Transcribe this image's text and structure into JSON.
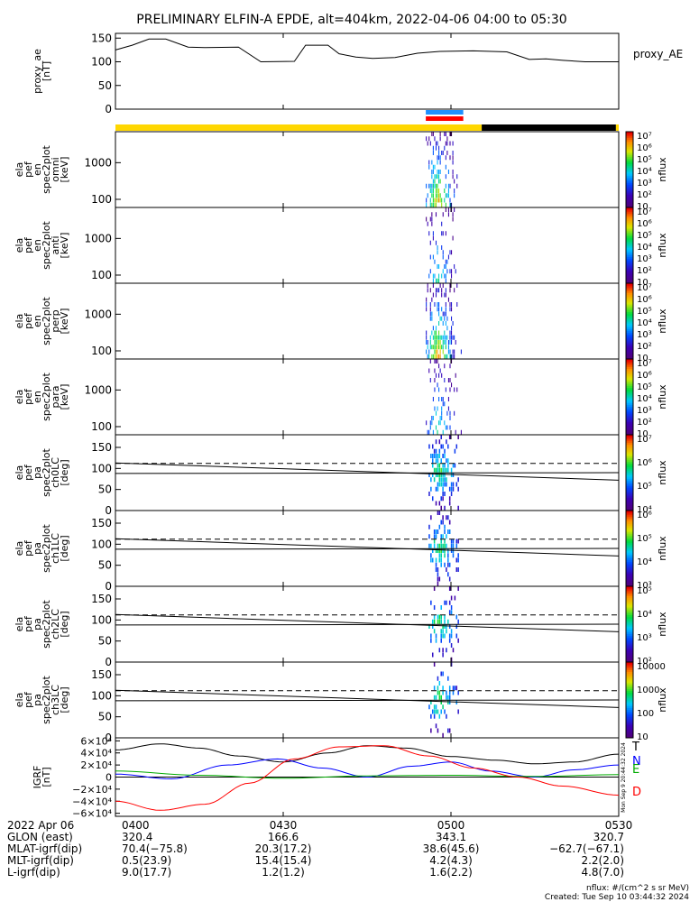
{
  "title": "PRELIMINARY ELFIN-A EPDE, alt=404km, 2022-04-06 04:00 to 05:30",
  "chart_data": {
    "type": "heatmap",
    "time_range": [
      "2022-04-06 04:00",
      "2022-04-06 05:30"
    ],
    "panels": [
      {
        "id": "proxy_ae",
        "type": "line",
        "ylabel_lines": [
          "proxy_ae",
          "[nT]"
        ],
        "side_label": "proxy_AE",
        "ylim": [
          0,
          160
        ],
        "yticks": [
          0,
          50,
          100,
          150
        ],
        "x_minutes": [
          0,
          3,
          6,
          9,
          13,
          16,
          22,
          26,
          32,
          34,
          38,
          40,
          43,
          46,
          50,
          54,
          58,
          64,
          70,
          74,
          77,
          80,
          84,
          90
        ],
        "values": [
          125,
          135,
          148,
          148,
          131,
          130,
          131,
          100,
          101,
          135,
          135,
          117,
          110,
          107,
          109,
          118,
          122,
          123,
          121,
          105,
          106,
          103,
          100,
          100
        ]
      },
      {
        "id": "status_bar",
        "type": "bar",
        "segments": [
          {
            "from_min": 0,
            "to_min": 65.5,
            "color": "#ffd700"
          },
          {
            "from_min": 65.5,
            "to_min": 89.5,
            "color": "#000000"
          },
          {
            "from_min": 89.5,
            "to_min": 90,
            "color": "#ffd700"
          }
        ],
        "markers": [
          {
            "from_min": 55.5,
            "to_min": 62.2,
            "color": "#1e90ff"
          },
          {
            "from_min": 55.5,
            "to_min": 62.2,
            "color": "#ff0000"
          }
        ]
      },
      {
        "id": "omni",
        "type": "heatmap",
        "ylabel_lines": [
          "ela",
          "pef",
          "en",
          "spec2plot",
          "omni",
          "[keV]"
        ],
        "ylog": true,
        "ylim": [
          60,
          7000
        ],
        "yticks": [
          100,
          1000
        ],
        "colorbar": {
          "label": "nflux",
          "log": true,
          "range": [
            10,
            10000000
          ],
          "ticks": [
            "10",
            "10²",
            "10³",
            "10⁴",
            "10⁵",
            "10⁶",
            "10⁷"
          ]
        }
      },
      {
        "id": "anti",
        "type": "heatmap",
        "ylabel_lines": [
          "ela",
          "pef",
          "en",
          "spec2plot",
          "anti",
          "[keV]"
        ],
        "ylog": true,
        "ylim": [
          60,
          7000
        ],
        "yticks": [
          100,
          1000
        ],
        "colorbar": {
          "label": "nflux",
          "log": true,
          "range": [
            10,
            10000000
          ],
          "ticks": [
            "10",
            "10²",
            "10³",
            "10⁴",
            "10⁵",
            "10⁶",
            "10⁷"
          ]
        }
      },
      {
        "id": "perp",
        "type": "heatmap",
        "ylabel_lines": [
          "ela",
          "pef",
          "en",
          "spec2plot",
          "perp",
          "[keV]"
        ],
        "ylog": true,
        "ylim": [
          60,
          7000
        ],
        "yticks": [
          100,
          1000
        ],
        "colorbar": {
          "label": "nflux",
          "log": true,
          "range": [
            10,
            10000000
          ],
          "ticks": [
            "10",
            "10²",
            "10³",
            "10⁴",
            "10⁵",
            "10⁶",
            "10⁷"
          ]
        }
      },
      {
        "id": "para",
        "type": "heatmap",
        "ylabel_lines": [
          "ela",
          "pef",
          "en",
          "spec2plot",
          "para",
          "[keV]"
        ],
        "ylog": true,
        "ylim": [
          60,
          7000
        ],
        "yticks": [
          100,
          1000
        ],
        "colorbar": {
          "label": "nflux",
          "log": true,
          "range": [
            10,
            10000000
          ],
          "ticks": [
            "10",
            "10²",
            "10³",
            "10⁴",
            "10⁵",
            "10⁶",
            "10⁷"
          ]
        }
      },
      {
        "id": "ch0LC",
        "type": "heatmap",
        "ylabel_lines": [
          "ela",
          "pef",
          "pa",
          "spec2plot",
          "ch0LC",
          "[deg]"
        ],
        "ylim": [
          0,
          180
        ],
        "yticks": [
          0,
          50,
          100,
          150
        ],
        "lc_line": {
          "values_deg": [
            113,
            72
          ]
        },
        "alc_line": {
          "values_deg": [
            88,
            90
          ]
        },
        "dashed_deg": 112,
        "colorbar": {
          "label": "nflux",
          "log": true,
          "range": [
            1000,
            10000000
          ],
          "ticks": [
            "10⁴",
            "10⁵",
            "10⁶",
            "10⁷"
          ]
        }
      },
      {
        "id": "ch1LC",
        "type": "heatmap",
        "ylabel_lines": [
          "ela",
          "pef",
          "pa",
          "spec2plot",
          "ch1LC",
          "[deg]"
        ],
        "ylim": [
          0,
          180
        ],
        "yticks": [
          0,
          50,
          100,
          150
        ],
        "lc_line": {
          "values_deg": [
            113,
            72
          ]
        },
        "alc_line": {
          "values_deg": [
            88,
            90
          ]
        },
        "dashed_deg": 112,
        "colorbar": {
          "label": "nflux",
          "log": true,
          "range": [
            1000,
            1000000
          ],
          "ticks": [
            "10³",
            "10⁴",
            "10⁵",
            "10⁶"
          ]
        }
      },
      {
        "id": "ch2LC",
        "type": "heatmap",
        "ylabel_lines": [
          "ela",
          "pef",
          "pa",
          "spec2plot",
          "ch2LC",
          "[deg]"
        ],
        "ylim": [
          0,
          180
        ],
        "yticks": [
          0,
          50,
          100,
          150
        ],
        "lc_line": {
          "values_deg": [
            113,
            72
          ]
        },
        "alc_line": {
          "values_deg": [
            88,
            90
          ]
        },
        "dashed_deg": 112,
        "colorbar": {
          "label": "nflux",
          "log": true,
          "range": [
            100,
            1000000
          ],
          "ticks": [
            "10²",
            "10³",
            "10⁴",
            "10⁵"
          ]
        }
      },
      {
        "id": "ch3LC",
        "type": "heatmap",
        "ylabel_lines": [
          "ela",
          "pef",
          "pa",
          "spec2plot",
          "ch3LC",
          "[deg]"
        ],
        "ylim": [
          0,
          180
        ],
        "yticks": [
          0,
          50,
          100,
          150
        ],
        "lc_line": {
          "values_deg": [
            113,
            72
          ]
        },
        "alc_line": {
          "values_deg": [
            88,
            90
          ]
        },
        "dashed_deg": 112,
        "colorbar": {
          "label": "nflux",
          "log": true,
          "range": [
            10,
            10000
          ],
          "ticks": [
            "10",
            "100",
            "1000",
            "10000"
          ]
        }
      },
      {
        "id": "igrf",
        "type": "line",
        "ylabel_lines": [
          "IGRF",
          "[nT]"
        ],
        "ylim": [
          -65000,
          65000
        ],
        "ytick_labels": [
          "6×10⁴",
          "4×10⁴",
          "2×10⁴",
          "0",
          "−2×10⁴",
          "−4×10⁴",
          "−6×10⁴"
        ],
        "yticks": [
          60000,
          40000,
          20000,
          0,
          -20000,
          -40000,
          -60000
        ],
        "vertical_note": "Mon Sep 9 20:44:32 2024",
        "series": [
          {
            "name": "T",
            "color": "#000000",
            "x_minutes": [
              0,
              8,
              15,
              22,
              30,
              38,
              45,
              52,
              60,
              68,
              75,
              82,
              90
            ],
            "values": [
              45000,
              55000,
              48000,
              35000,
              25000,
              40000,
              52000,
              48000,
              34000,
              28000,
              22000,
              25000,
              38000
            ]
          },
          {
            "name": "N",
            "color": "#0000ff",
            "x_minutes": [
              0,
              10,
              20,
              29,
              37,
              45,
              53,
              60,
              67,
              75,
              82,
              90
            ],
            "values": [
              5000,
              -3000,
              20000,
              30000,
              15000,
              0,
              18000,
              25000,
              10000,
              0,
              12000,
              20000
            ]
          },
          {
            "name": "E",
            "color": "#00aa00",
            "x_minutes": [
              0,
              15,
              30,
              45,
              60,
              75,
              90
            ],
            "values": [
              10000,
              3000,
              -2000,
              2000,
              3000,
              1000,
              4000
            ]
          },
          {
            "name": "D",
            "color": "#ff0000",
            "x_minutes": [
              0,
              8,
              16,
              24,
              32,
              40,
              48,
              56,
              64,
              72,
              80,
              90
            ],
            "values": [
              -40000,
              -55000,
              -45000,
              -10000,
              30000,
              50000,
              52000,
              35000,
              15000,
              0,
              -15000,
              -30000
            ]
          }
        ]
      }
    ],
    "x_ticks": [
      {
        "minute": 0,
        "label": "0400"
      },
      {
        "minute": 30,
        "label": "0430"
      },
      {
        "minute": 60,
        "label": "0500"
      },
      {
        "minute": 90,
        "label": "0530"
      }
    ]
  },
  "footer": {
    "date_label": "2022 Apr 06",
    "rows": [
      {
        "label": "GLON (east)",
        "values": [
          "320.4",
          "166.6",
          "343.1",
          "320.7"
        ]
      },
      {
        "label": "MLAT-igrf(dip)",
        "values": [
          "70.4(−75.8)",
          "20.3(17.2)",
          "38.6(45.6)",
          "−62.7(−67.1)"
        ]
      },
      {
        "label": "MLT-igrf(dip)",
        "values": [
          "0.5(23.9)",
          "15.4(15.4)",
          "4.2(4.3)",
          "2.2(2.0)"
        ]
      },
      {
        "label": "L-igrf(dip)",
        "values": [
          "9.0(17.7)",
          "1.2(1.2)",
          "1.6(2.2)",
          "4.8(7.0)"
        ]
      }
    ],
    "note_units": "nflux: #/(cm^2 s sr MeV)",
    "note_created": "Created: Tue Sep 10 03:44:32 2024"
  },
  "colors": {
    "status_yellow": "#ffd700",
    "marker_blue": "#1e90ff",
    "marker_red": "#ff0000"
  }
}
